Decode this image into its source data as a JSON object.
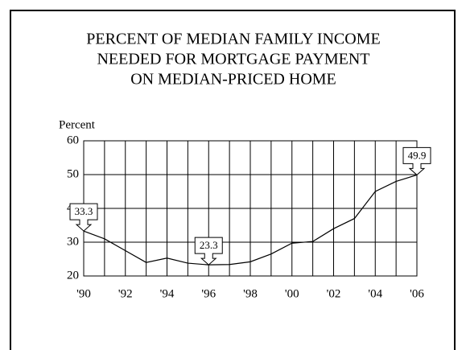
{
  "chart_data": {
    "type": "line",
    "title": [
      "PERCENT OF MEDIAN FAMILY INCOME",
      "NEEDED FOR MORTGAGE PAYMENT",
      "ON MEDIAN-PRICED HOME"
    ],
    "y_label": "Percent",
    "x": [
      1990,
      1991,
      1992,
      1993,
      1994,
      1995,
      1996,
      1997,
      1998,
      1999,
      2000,
      2001,
      2002,
      2003,
      2004,
      2005,
      2006
    ],
    "values": [
      33.3,
      31,
      27.5,
      24,
      25.3,
      23.8,
      23.3,
      23.4,
      24.2,
      26.5,
      29.7,
      30.2,
      34,
      37,
      45,
      48,
      49.9
    ],
    "color": "#000000",
    "xlim": [
      1990,
      2006
    ],
    "xticks": [
      {
        "value": 1990,
        "label": "'90"
      },
      {
        "value": 1992,
        "label": "'92"
      },
      {
        "value": 1994,
        "label": "'94"
      },
      {
        "value": 1996,
        "label": "'96"
      },
      {
        "value": 1998,
        "label": "'98"
      },
      {
        "value": 2000,
        "label": "'00"
      },
      {
        "value": 2002,
        "label": "'02"
      },
      {
        "value": 2004,
        "label": "'04"
      },
      {
        "value": 2006,
        "label": "'06"
      }
    ],
    "ylim": [
      20,
      60
    ],
    "yticks": [
      20,
      30,
      40,
      50,
      60
    ],
    "grid": true,
    "annotations": [
      {
        "x": 1990,
        "y": 33.3
      },
      {
        "x": 1996,
        "y": 23.3
      },
      {
        "x": 2006,
        "y": 49.9
      }
    ]
  }
}
